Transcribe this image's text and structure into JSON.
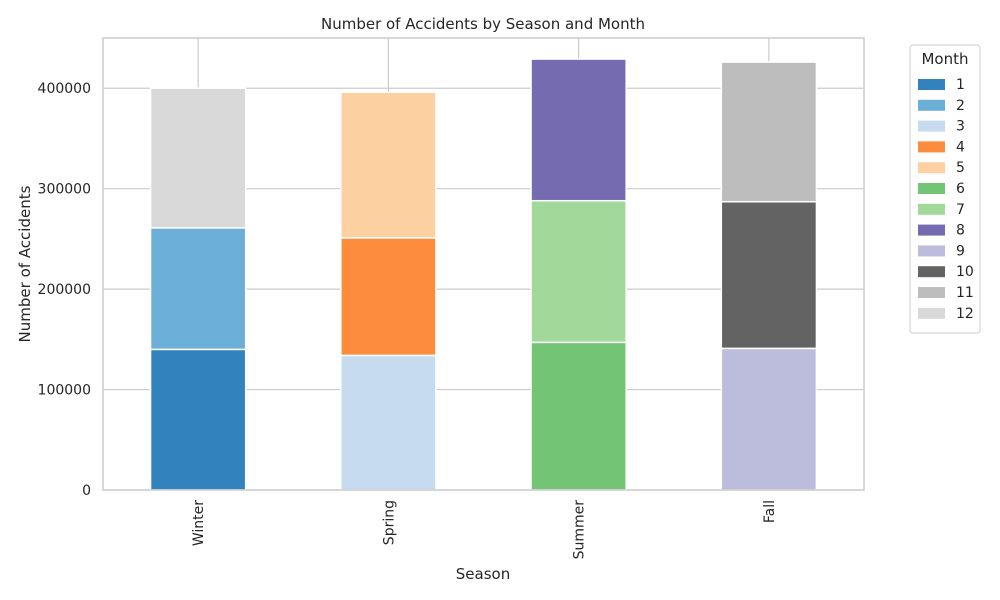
{
  "chart_data": {
    "type": "bar",
    "stacked": true,
    "title": "Number of Accidents by Season and Month",
    "xlabel": "Season",
    "ylabel": "Number of Accidents",
    "categories": [
      "Winter",
      "Spring",
      "Summer",
      "Fall"
    ],
    "ylim": [
      0,
      450000
    ],
    "yticks": [
      0,
      100000,
      200000,
      300000,
      400000
    ],
    "ytick_labels": [
      "0",
      "100000",
      "200000",
      "300000",
      "400000"
    ],
    "grid": true,
    "legend": {
      "title": "Month",
      "position": "right-outside"
    },
    "series": [
      {
        "name": "1",
        "color": "#3182bd",
        "values": [
          140000,
          0,
          0,
          0
        ]
      },
      {
        "name": "2",
        "color": "#6baed6",
        "values": [
          121000,
          0,
          0,
          0
        ]
      },
      {
        "name": "3",
        "color": "#c6dbef",
        "values": [
          0,
          134000,
          0,
          0
        ]
      },
      {
        "name": "4",
        "color": "#fd8d3c",
        "values": [
          0,
          117000,
          0,
          0
        ]
      },
      {
        "name": "5",
        "color": "#fdd0a2",
        "values": [
          0,
          145000,
          0,
          0
        ]
      },
      {
        "name": "6",
        "color": "#74c476",
        "values": [
          0,
          0,
          147000,
          0
        ]
      },
      {
        "name": "7",
        "color": "#a1d99b",
        "values": [
          0,
          0,
          141000,
          0
        ]
      },
      {
        "name": "8",
        "color": "#756bb1",
        "values": [
          0,
          0,
          141000,
          0
        ]
      },
      {
        "name": "9",
        "color": "#bcbddc",
        "values": [
          0,
          0,
          0,
          141000
        ]
      },
      {
        "name": "10",
        "color": "#636363",
        "values": [
          0,
          0,
          0,
          146000
        ]
      },
      {
        "name": "11",
        "color": "#bdbdbd",
        "values": [
          0,
          0,
          0,
          139000
        ]
      },
      {
        "name": "12",
        "color": "#d9d9d9",
        "values": [
          139000,
          0,
          0,
          0
        ]
      }
    ]
  }
}
